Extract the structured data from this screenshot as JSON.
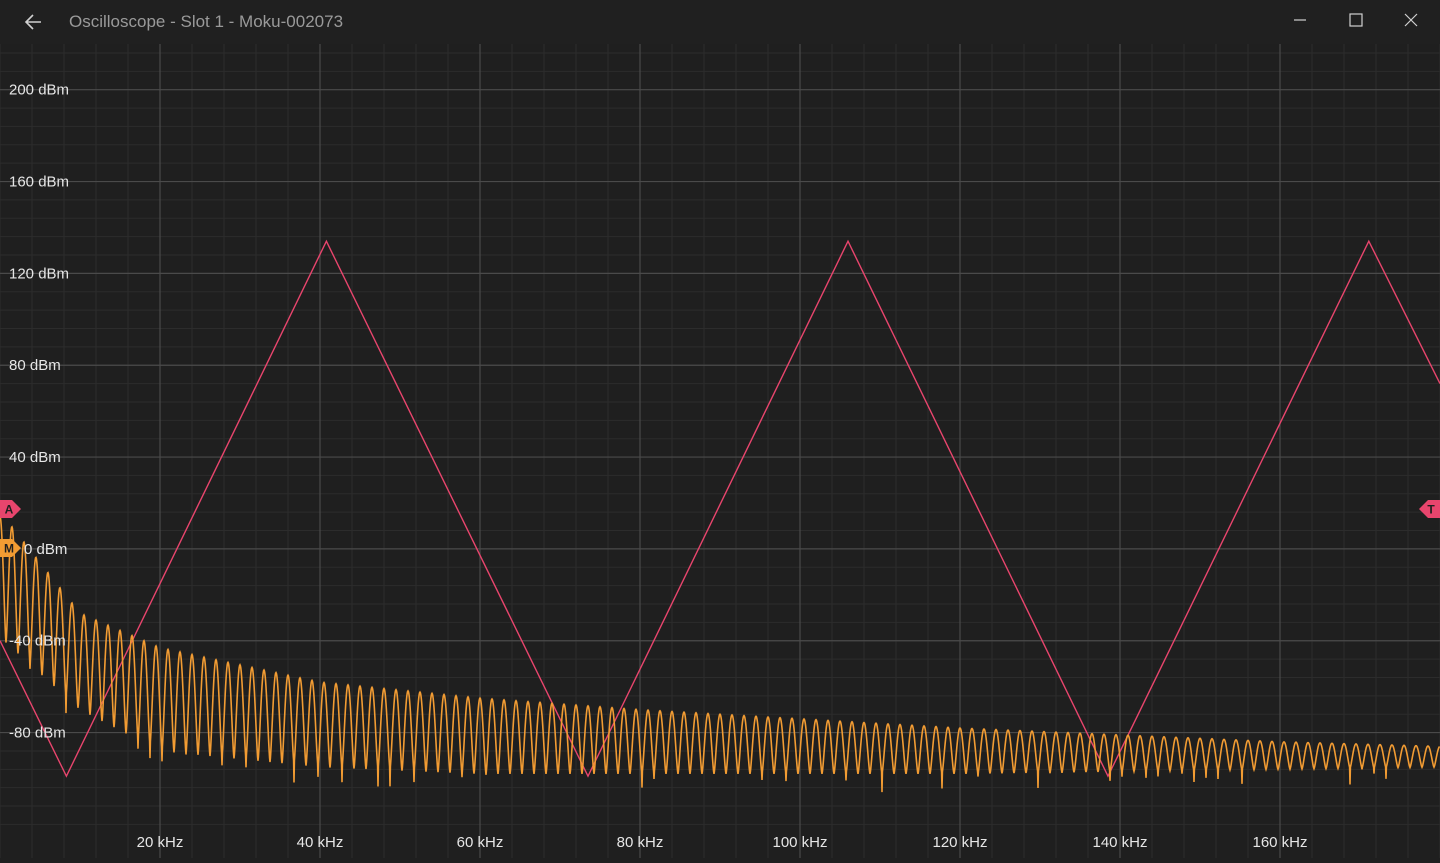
{
  "window": {
    "title": "Oscilloscope - Slot 1 - Moku-002073",
    "back_icon": "arrow-left-icon",
    "minimize_icon": "minimize-icon",
    "maximize_icon": "maximize-icon",
    "close_icon": "close-icon"
  },
  "markers": {
    "channel_a": "A",
    "math": "M",
    "trigger": "T"
  },
  "colors": {
    "background": "#1f1f1f",
    "channel_a": "#e8456d",
    "math": "#f29c33",
    "grid_major": "#4a4a4a",
    "grid_minor": "#2c2c2c"
  },
  "chart_data": {
    "type": "line",
    "title": "",
    "xlabel": "",
    "ylabel": "",
    "xlim": [
      0,
      180
    ],
    "ylim": [
      -120,
      220
    ],
    "x_unit": "kHz",
    "y_unit": "dBm",
    "x_ticks": [
      20,
      40,
      60,
      80,
      100,
      120,
      140,
      160
    ],
    "x_tick_labels": [
      "20 kHz",
      "40 kHz",
      "60 kHz",
      "80 kHz",
      "100 kHz",
      "120 kHz",
      "140 kHz",
      "160 kHz"
    ],
    "y_ticks": [
      200,
      160,
      120,
      80,
      40,
      0,
      -40,
      -80
    ],
    "y_tick_labels": [
      "200 dBm",
      "160 dBm",
      "120 dBm",
      "80 dBm",
      "40 dBm",
      "0 dBm",
      "-40 dBm",
      "-80 dBm"
    ],
    "grid": true,
    "series": [
      {
        "color": "#e8456d",
        "points": [
          [
            0,
            -40
          ],
          [
            8.3,
            -99
          ],
          [
            40.8,
            134
          ],
          [
            73.5,
            -99
          ],
          [
            106.0,
            134
          ],
          [
            138.5,
            -99
          ],
          [
            171.1,
            134
          ],
          [
            180,
            72
          ]
        ]
      },
      {
        "color": "#f29c33",
        "envelope_peaks": [
          [
            0.5,
            14
          ],
          [
            10,
            -28
          ],
          [
            20,
            -43
          ],
          [
            40,
            -58
          ],
          [
            60,
            -65
          ],
          [
            80,
            -70
          ],
          [
            100,
            -74
          ],
          [
            120,
            -78
          ],
          [
            140,
            -81
          ],
          [
            160,
            -84
          ],
          [
            180,
            -86
          ]
        ],
        "envelope_troughs": [
          [
            0.5,
            -40
          ],
          [
            10,
            -70
          ],
          [
            20,
            -88
          ],
          [
            40,
            -95
          ],
          [
            60,
            -98
          ],
          [
            80,
            -98
          ],
          [
            100,
            -98
          ],
          [
            120,
            -98
          ],
          [
            140,
            -97
          ],
          [
            160,
            -96
          ],
          [
            180,
            -95
          ]
        ],
        "ripple_period": 1.5
      }
    ]
  }
}
